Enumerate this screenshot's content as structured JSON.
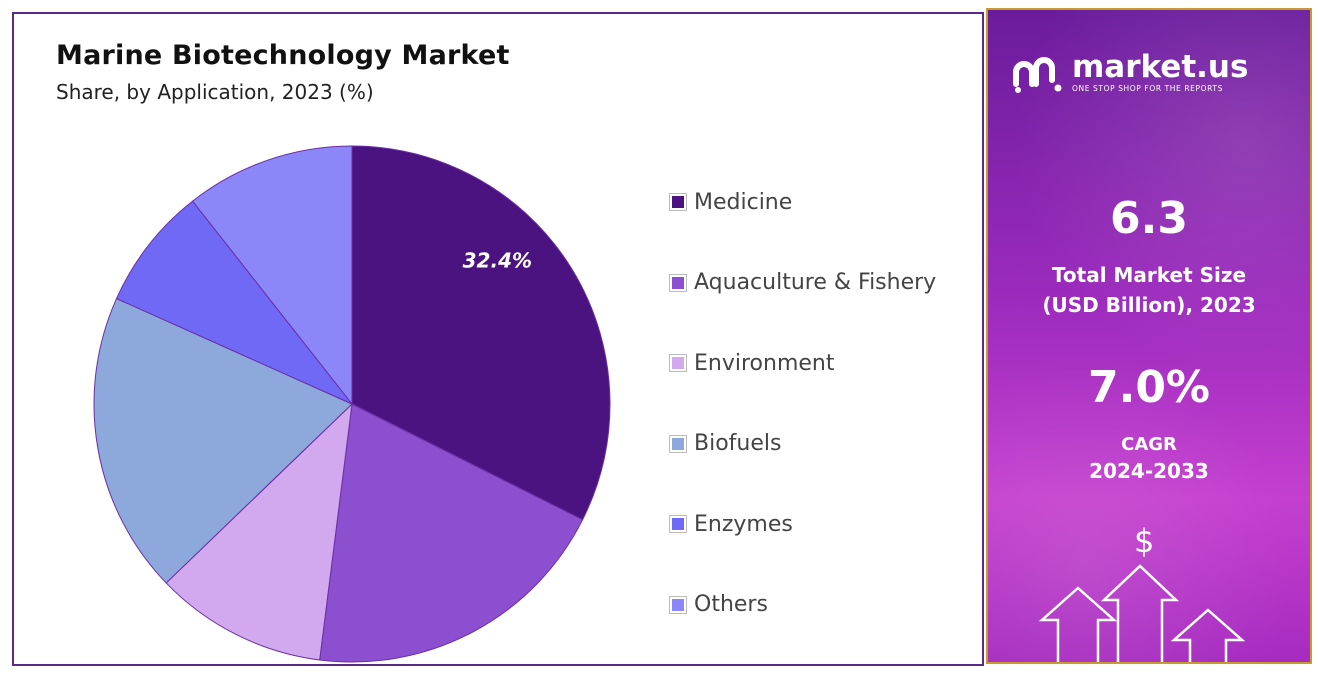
{
  "chart": {
    "title": "Marine Biotechnology Market",
    "subtitle": "Share, by Application, 2023 (%)"
  },
  "chart_data": {
    "type": "pie",
    "title": "Marine Biotechnology Market",
    "subtitle": "Share, by Application, 2023 (%)",
    "categories": [
      "Medicine",
      "Aquaculture & Fishery",
      "Environment",
      "Biofuels",
      "Enzymes",
      "Others"
    ],
    "values": [
      32.4,
      19.6,
      10.8,
      18.9,
      7.7,
      10.6
    ],
    "data_labels": [
      "32.4%",
      "",
      "",
      "",
      "",
      ""
    ],
    "colors": [
      "#4b1380",
      "#8b4fd0",
      "#d2a8ee",
      "#8da8da",
      "#6f69f6",
      "#8b87f8"
    ],
    "legend_position": "right"
  },
  "sidebar": {
    "brand_name": "market.us",
    "brand_tagline": "ONE STOP SHOP FOR THE REPORTS",
    "market_size_value": "6.3",
    "market_size_label_1": "Total Market Size",
    "market_size_label_2": "(USD Billion), 2023",
    "cagr_value": "7.0%",
    "cagr_label": "CAGR",
    "cagr_period": "2024-2033",
    "currency_symbol": "$"
  }
}
